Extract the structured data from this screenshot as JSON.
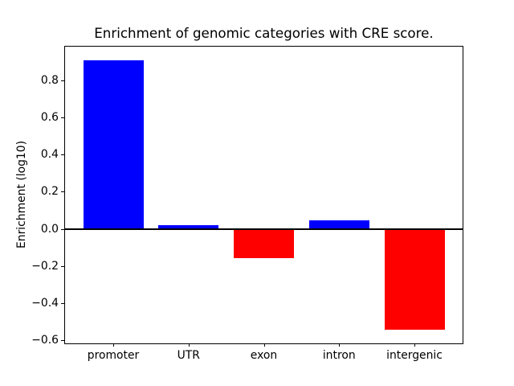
{
  "figure": {
    "title": "Enrichment of genomic categories with CRE score.",
    "ylabel": "Enrichment (log10)"
  },
  "chart_data": {
    "type": "bar",
    "title": "Enrichment of genomic categories with CRE score.",
    "xlabel": "",
    "ylabel": "Enrichment (log10)",
    "categories": [
      "promoter",
      "UTR",
      "exon",
      "intron",
      "intergenic"
    ],
    "values": [
      0.91,
      0.02,
      -0.16,
      0.045,
      -0.545
    ],
    "bar_colors": [
      "#0000ff",
      "#0000ff",
      "#ff0000",
      "#0000ff",
      "#ff0000"
    ],
    "positive_color": "#0000ff",
    "negative_color": "#ff0000",
    "yticks": [
      -0.6,
      -0.4,
      -0.2,
      0.0,
      0.2,
      0.4,
      0.6,
      0.8
    ],
    "ytick_labels": [
      "−0.6",
      "−0.4",
      "−0.2",
      "0.0",
      "0.2",
      "0.4",
      "0.6",
      "0.8"
    ],
    "ylim": [
      -0.618,
      0.983
    ],
    "xlim": [
      -0.64,
      4.64
    ],
    "bar_width": 0.8,
    "zero_line": true,
    "grid": false,
    "legend": null,
    "background": "#ffffff",
    "axis_color": "#000000"
  }
}
